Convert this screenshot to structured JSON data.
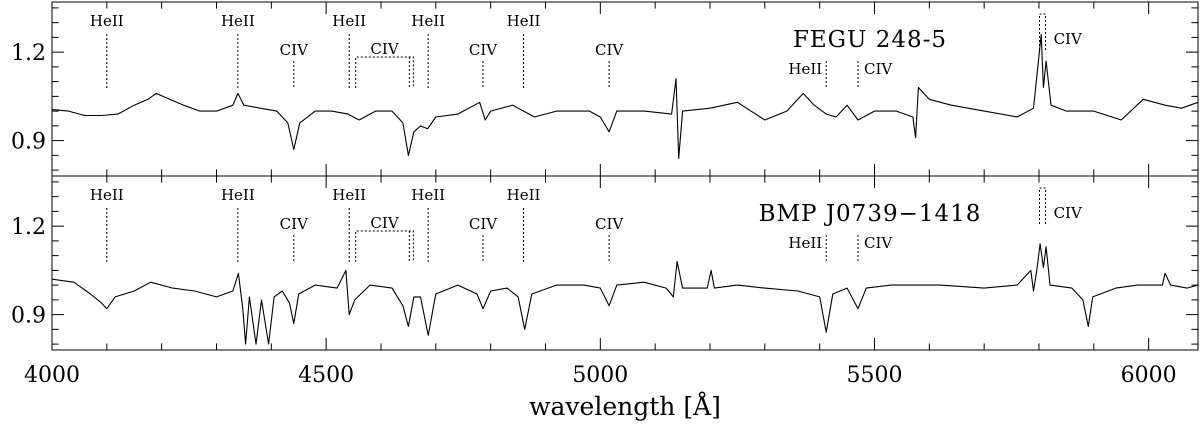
{
  "chart_data": {
    "type": "line",
    "xlabel": "wavelength [Å]",
    "xlim": [
      4000,
      6090
    ],
    "ylim": [
      0.78,
      1.37
    ],
    "x_ticks": [
      4000,
      4500,
      5000,
      5500,
      6000
    ],
    "y_ticks": [
      0.9,
      1.2
    ],
    "y_tick_labels": [
      "0.9",
      "1.2"
    ],
    "line_ids": [
      {
        "label": "HeII",
        "x": 4100,
        "row": 0
      },
      {
        "label": "HeII",
        "x": 4339,
        "row": 0
      },
      {
        "label": "CIV",
        "x": 4441,
        "row": 1
      },
      {
        "label": "HeII",
        "x": 4542,
        "row": 0
      },
      {
        "label": "CIV",
        "x_range": [
          4554,
          4659
        ],
        "row": 1
      },
      {
        "label": "HeII",
        "x": 4686,
        "row": 0
      },
      {
        "label": "CIV",
        "x": 4786,
        "row": 1
      },
      {
        "label": "HeII",
        "x": 4860,
        "row": 0
      },
      {
        "label": "CIV",
        "x": 5016,
        "row": 1
      },
      {
        "label": "HeII",
        "x": 5412,
        "row": 2
      },
      {
        "label": "CIV",
        "x": 5470,
        "row": 2
      },
      {
        "label": "CIV",
        "x_range": [
          5801,
          5812
        ],
        "row": 3
      }
    ],
    "panels": [
      {
        "title": "FEGU 248-5",
        "series": [
          {
            "values": [
              [
                4000,
                1.005
              ],
              [
                4030,
                1.0
              ],
              [
                4060,
                0.985
              ],
              [
                4090,
                0.985
              ],
              [
                4120,
                0.99
              ],
              [
                4150,
                1.02
              ],
              [
                4175,
                1.04
              ],
              [
                4190,
                1.06
              ],
              [
                4240,
                1.02
              ],
              [
                4270,
                1.0
              ],
              [
                4300,
                1.0
              ],
              [
                4330,
                1.02
              ],
              [
                4339,
                1.06
              ],
              [
                4350,
                1.02
              ],
              [
                4380,
                1.01
              ],
              [
                4410,
                1.0
              ],
              [
                4430,
                0.96
              ],
              [
                4441,
                0.87
              ],
              [
                4452,
                0.96
              ],
              [
                4480,
                1.0
              ],
              [
                4510,
                1.0
              ],
              [
                4540,
                0.99
              ],
              [
                4560,
                0.97
              ],
              [
                4590,
                1.0
              ],
              [
                4620,
                1.0
              ],
              [
                4640,
                0.96
              ],
              [
                4650,
                0.85
              ],
              [
                4660,
                0.93
              ],
              [
                4672,
                0.95
              ],
              [
                4685,
                0.94
              ],
              [
                4700,
                0.98
              ],
              [
                4740,
                0.99
              ],
              [
                4780,
                1.03
              ],
              [
                4790,
                0.97
              ],
              [
                4800,
                1.0
              ],
              [
                4840,
                1.02
              ],
              [
                4860,
                1.0
              ],
              [
                4880,
                0.98
              ],
              [
                4920,
                1.0
              ],
              [
                4980,
                1.0
              ],
              [
                5000,
                0.98
              ],
              [
                5016,
                0.93
              ],
              [
                5030,
                1.0
              ],
              [
                5080,
                1.0
              ],
              [
                5130,
                0.99
              ],
              [
                5138,
                1.11
              ],
              [
                5143,
                0.84
              ],
              [
                5150,
                1.0
              ],
              [
                5200,
                1.01
              ],
              [
                5250,
                1.03
              ],
              [
                5300,
                0.97
              ],
              [
                5340,
                1.0
              ],
              [
                5370,
                1.06
              ],
              [
                5390,
                1.02
              ],
              [
                5412,
                0.99
              ],
              [
                5430,
                0.98
              ],
              [
                5450,
                1.02
              ],
              [
                5470,
                0.97
              ],
              [
                5500,
                1.0
              ],
              [
                5540,
                1.0
              ],
              [
                5570,
                0.98
              ],
              [
                5575,
                0.91
              ],
              [
                5580,
                1.08
              ],
              [
                5600,
                1.04
              ],
              [
                5640,
                1.02
              ],
              [
                5700,
                1.0
              ],
              [
                5760,
                0.98
              ],
              [
                5790,
                1.01
              ],
              [
                5804,
                1.26
              ],
              [
                5808,
                1.08
              ],
              [
                5813,
                1.17
              ],
              [
                5822,
                1.02
              ],
              [
                5850,
                1.0
              ],
              [
                5900,
                1.0
              ],
              [
                5950,
                0.97
              ],
              [
                5990,
                1.04
              ],
              [
                6030,
                1.02
              ],
              [
                6060,
                1.01
              ],
              [
                6090,
                1.03
              ]
            ]
          }
        ]
      },
      {
        "title": "BMP J0739−1418",
        "series": [
          {
            "values": [
              [
                4000,
                1.02
              ],
              [
                4040,
                1.01
              ],
              [
                4070,
                0.97
              ],
              [
                4090,
                0.94
              ],
              [
                4100,
                0.92
              ],
              [
                4115,
                0.96
              ],
              [
                4150,
                0.98
              ],
              [
                4180,
                1.01
              ],
              [
                4220,
                0.99
              ],
              [
                4260,
                0.98
              ],
              [
                4300,
                0.96
              ],
              [
                4330,
                0.98
              ],
              [
                4340,
                1.04
              ],
              [
                4348,
                0.92
              ],
              [
                4353,
                0.8
              ],
              [
                4360,
                0.96
              ],
              [
                4372,
                0.8
              ],
              [
                4382,
                0.95
              ],
              [
                4395,
                0.8
              ],
              [
                4405,
                0.96
              ],
              [
                4420,
                0.98
              ],
              [
                4433,
                0.94
              ],
              [
                4441,
                0.87
              ],
              [
                4450,
                0.97
              ],
              [
                4480,
                1.0
              ],
              [
                4520,
                0.99
              ],
              [
                4536,
                1.05
              ],
              [
                4542,
                0.9
              ],
              [
                4552,
                0.95
              ],
              [
                4580,
                1.0
              ],
              [
                4620,
                0.99
              ],
              [
                4640,
                0.93
              ],
              [
                4650,
                0.86
              ],
              [
                4660,
                0.96
              ],
              [
                4672,
                0.96
              ],
              [
                4686,
                0.83
              ],
              [
                4700,
                0.97
              ],
              [
                4740,
                1.0
              ],
              [
                4775,
                0.97
              ],
              [
                4786,
                0.92
              ],
              [
                4800,
                0.98
              ],
              [
                4830,
                0.99
              ],
              [
                4850,
                0.96
              ],
              [
                4862,
                0.85
              ],
              [
                4875,
                0.97
              ],
              [
                4920,
                1.0
              ],
              [
                4970,
                1.0
              ],
              [
                5000,
                0.99
              ],
              [
                5016,
                0.93
              ],
              [
                5030,
                1.0
              ],
              [
                5080,
                1.01
              ],
              [
                5120,
                0.99
              ],
              [
                5133,
                0.96
              ],
              [
                5140,
                1.08
              ],
              [
                5150,
                0.99
              ],
              [
                5195,
                0.99
              ],
              [
                5202,
                1.05
              ],
              [
                5208,
                0.99
              ],
              [
                5250,
                1.0
              ],
              [
                5300,
                0.99
              ],
              [
                5360,
                0.98
              ],
              [
                5400,
                0.96
              ],
              [
                5412,
                0.84
              ],
              [
                5424,
                0.97
              ],
              [
                5450,
                0.99
              ],
              [
                5470,
                0.92
              ],
              [
                5485,
                0.99
              ],
              [
                5530,
                1.0
              ],
              [
                5580,
                1.0
              ],
              [
                5620,
                1.0
              ],
              [
                5700,
                0.99
              ],
              [
                5760,
                1.0
              ],
              [
                5785,
                1.05
              ],
              [
                5790,
                0.98
              ],
              [
                5796,
                1.05
              ],
              [
                5802,
                1.14
              ],
              [
                5808,
                1.06
              ],
              [
                5813,
                1.13
              ],
              [
                5820,
                1.0
              ],
              [
                5860,
                0.99
              ],
              [
                5880,
                0.95
              ],
              [
                5890,
                0.86
              ],
              [
                5898,
                0.96
              ],
              [
                5940,
                0.99
              ],
              [
                5980,
                1.0
              ],
              [
                6025,
                1.0
              ],
              [
                6030,
                1.04
              ],
              [
                6040,
                1.0
              ],
              [
                6070,
                0.99
              ],
              [
                6090,
                1.0
              ]
            ]
          }
        ]
      }
    ]
  }
}
